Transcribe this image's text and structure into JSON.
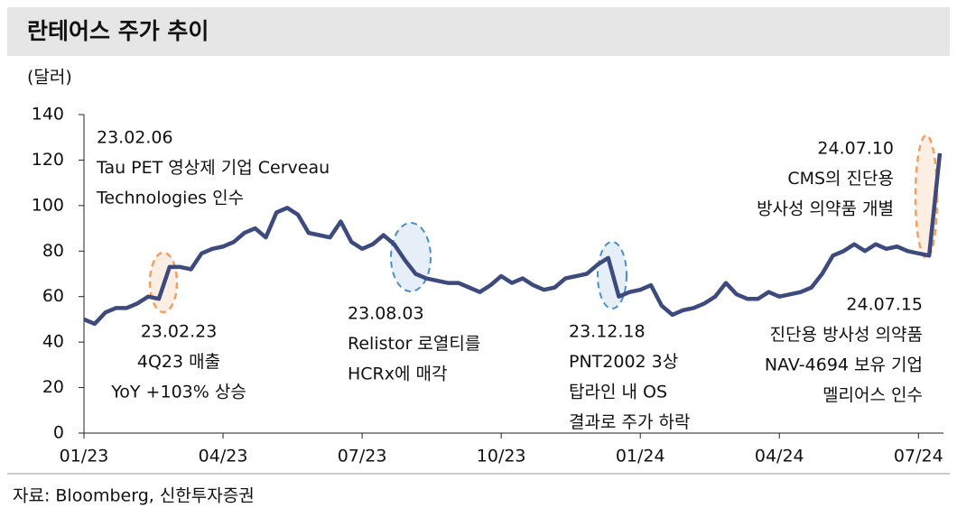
{
  "chart_data": {
    "type": "line",
    "title": "란테어스 주가 추이",
    "y_axis_label": "(달러)",
    "categories": [
      "01/23",
      null,
      null,
      null,
      null,
      null,
      null,
      null,
      null,
      null,
      null,
      null,
      null,
      "04/23",
      null,
      null,
      null,
      null,
      null,
      null,
      null,
      null,
      null,
      null,
      null,
      null,
      "07/23",
      null,
      null,
      null,
      null,
      null,
      null,
      null,
      null,
      null,
      null,
      null,
      null,
      "10/23",
      null,
      null,
      null,
      null,
      null,
      null,
      null,
      null,
      null,
      null,
      null,
      null,
      "01/24",
      null,
      null,
      null,
      null,
      null,
      null,
      null,
      null,
      null,
      null,
      null,
      null,
      "04/24",
      null,
      null,
      null,
      null,
      null,
      null,
      null,
      null,
      null,
      null,
      null,
      null,
      "07/24",
      null,
      null
    ],
    "series": [
      {
        "name": "란테어스",
        "color": "#3d4a7e",
        "values": [
          50,
          48,
          53,
          55,
          55,
          57,
          60,
          59,
          73,
          73,
          72,
          79,
          81,
          82,
          84,
          88,
          90,
          86,
          97,
          99,
          96,
          88,
          87,
          86,
          93,
          84,
          81,
          83,
          87,
          83,
          76,
          70,
          68,
          67,
          66,
          66,
          64,
          62,
          65,
          69,
          66,
          68,
          65,
          63,
          64,
          68,
          69,
          70,
          74,
          77,
          60,
          62,
          63,
          65,
          56,
          52,
          54,
          55,
          57,
          60,
          66,
          61,
          59,
          59,
          62,
          60,
          61,
          62,
          64,
          70,
          78,
          80,
          83,
          80,
          83,
          81,
          82,
          80,
          79,
          78,
          123
        ]
      }
    ],
    "ylim": [
      0,
      140
    ],
    "yticks": [
      0,
      20,
      40,
      60,
      80,
      100,
      120,
      140
    ],
    "annotations": [
      {
        "text": [
          "23.02.06",
          "Tau PET 영상제 기업 Cerveau",
          "Technologies 인수"
        ]
      },
      {
        "text": [
          "23.02.23",
          "4Q23 매출",
          "YoY +103% 상승"
        ]
      },
      {
        "text": [
          "23.08.03",
          "Relistor 로열티를",
          "HCRx에 매각"
        ]
      },
      {
        "text": [
          "23.12.18",
          "PNT2002 3상",
          "탑라인 내 OS",
          "결과로 주가 하락"
        ]
      },
      {
        "text": [
          "24.07.10",
          "CMS의 진단용",
          "방사성 의약품 개별"
        ]
      },
      {
        "text": [
          "24.07.15",
          "진단용 방사성 의약품",
          "NAV-4694 보유 기업",
          "멜리어스 인수"
        ]
      }
    ],
    "source": "자료: Bloomberg, 신한투자증권"
  }
}
